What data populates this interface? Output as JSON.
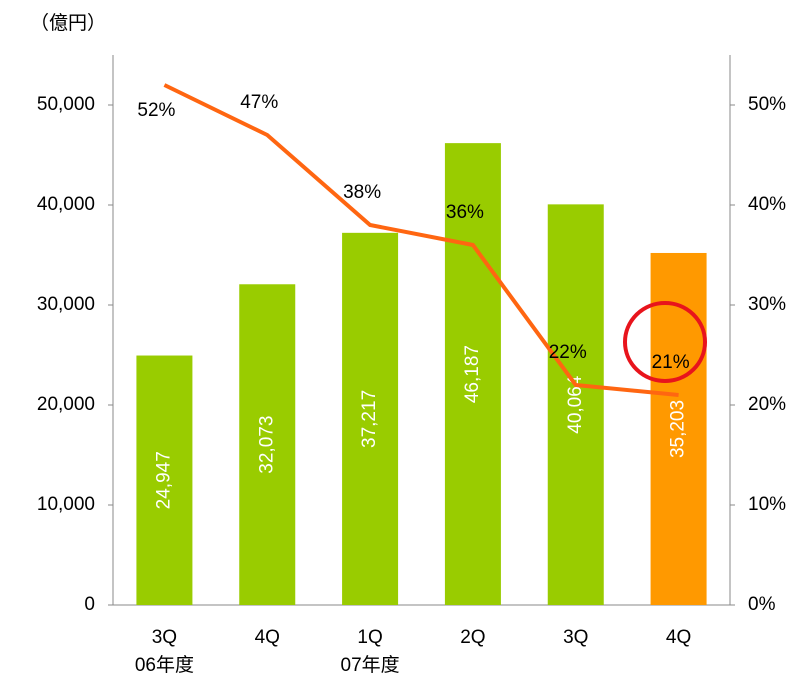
{
  "chart_data": {
    "type": "bar_line",
    "y_label": "（億円）",
    "categories": [
      "3Q",
      "4Q",
      "1Q",
      "2Q",
      "3Q",
      "4Q"
    ],
    "category_sublabels": [
      "06年度",
      null,
      "07年度",
      null,
      null,
      null
    ],
    "series": [
      {
        "type": "bar",
        "colors": [
          "#99cc00",
          "#99cc00",
          "#99cc00",
          "#99cc00",
          "#99cc00",
          "#ff9900"
        ],
        "values": [
          24947,
          32073,
          37217,
          46187,
          40064,
          35203
        ],
        "value_labels": [
          "24,947",
          "32,073",
          "37,217",
          "46,187",
          "40,064",
          "35,203"
        ]
      },
      {
        "type": "line",
        "axis": "y2",
        "color": "#ff6611",
        "values": [
          52,
          47,
          38,
          36,
          22,
          21
        ],
        "value_labels": [
          "52%",
          "47%",
          "38%",
          "36%",
          "22%",
          "21%"
        ]
      }
    ],
    "ylim": [
      0,
      55000
    ],
    "yticks": [
      0,
      {
        "value": 10000,
        "label": "10,000"
      },
      {
        "value": 20000,
        "label": "20,000"
      },
      {
        "value": 30000,
        "label": "30,000"
      },
      {
        "value": 40000,
        "label": "40,000"
      },
      {
        "value": 50000,
        "label": "50,000"
      }
    ],
    "y2lim": [
      0,
      55
    ],
    "y2ticks": [
      {
        "value": 0,
        "label": "0%"
      },
      {
        "value": 10,
        "label": "10%"
      },
      {
        "value": 20,
        "label": "20%"
      },
      {
        "value": 30,
        "label": "30%"
      },
      {
        "value": 40,
        "label": "40%"
      },
      {
        "value": 50,
        "label": "50%"
      }
    ],
    "grid": false
  }
}
